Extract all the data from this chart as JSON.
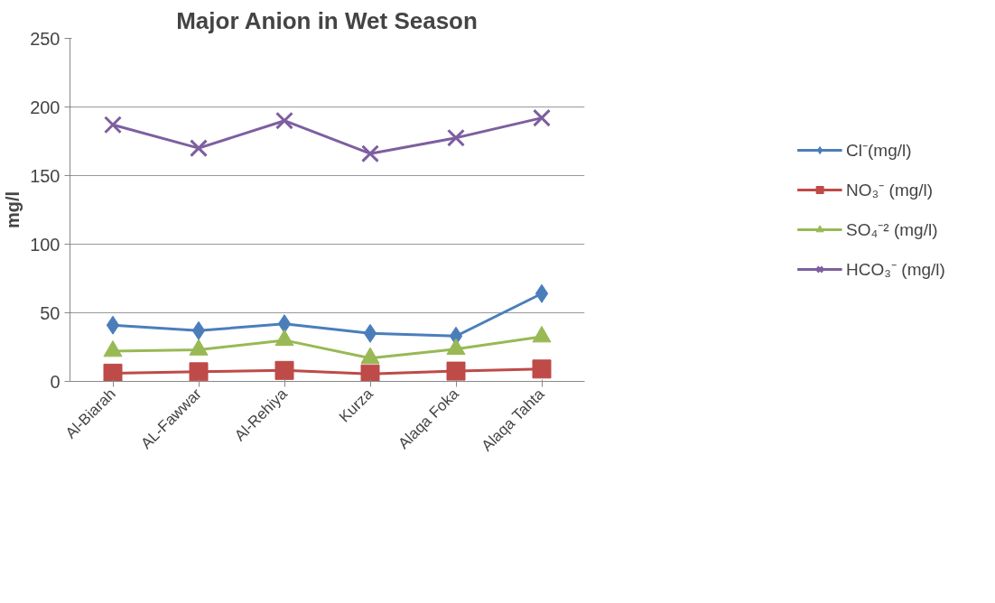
{
  "chart_data": {
    "type": "line",
    "title": "Major Anion in Wet Season",
    "ylabel": "mg/l",
    "categories": [
      "Al-Biarah",
      "AL-Fawwar",
      "Al-Rehiya",
      "Kurza",
      "Alaqa Foka",
      "Alaqa Tahta"
    ],
    "series": [
      {
        "name": "Cl⁻(mg/l)",
        "color": "#4a7ebb",
        "marker": "diamond",
        "values": [
          41,
          37,
          42,
          35,
          33,
          64
        ]
      },
      {
        "name": "NO₃⁻ (mg/l)",
        "color": "#be4b48",
        "marker": "square",
        "values": [
          6,
          7,
          8,
          5.5,
          7.5,
          9
        ]
      },
      {
        "name": "SO₄⁻² (mg/l)",
        "color": "#98b954",
        "marker": "triangle",
        "values": [
          22,
          23,
          30,
          17,
          23.5,
          32.5
        ]
      },
      {
        "name": "HCO₃⁻ (mg/l)",
        "color": "#7d5fa0",
        "marker": "cross",
        "values": [
          187,
          170,
          190,
          166,
          177.5,
          192
        ]
      }
    ],
    "ylim": [
      0,
      250
    ],
    "yticks": [
      0,
      50,
      100,
      150,
      200,
      250
    ],
    "grid": "y",
    "legend": "right",
    "line_style": "solid"
  }
}
